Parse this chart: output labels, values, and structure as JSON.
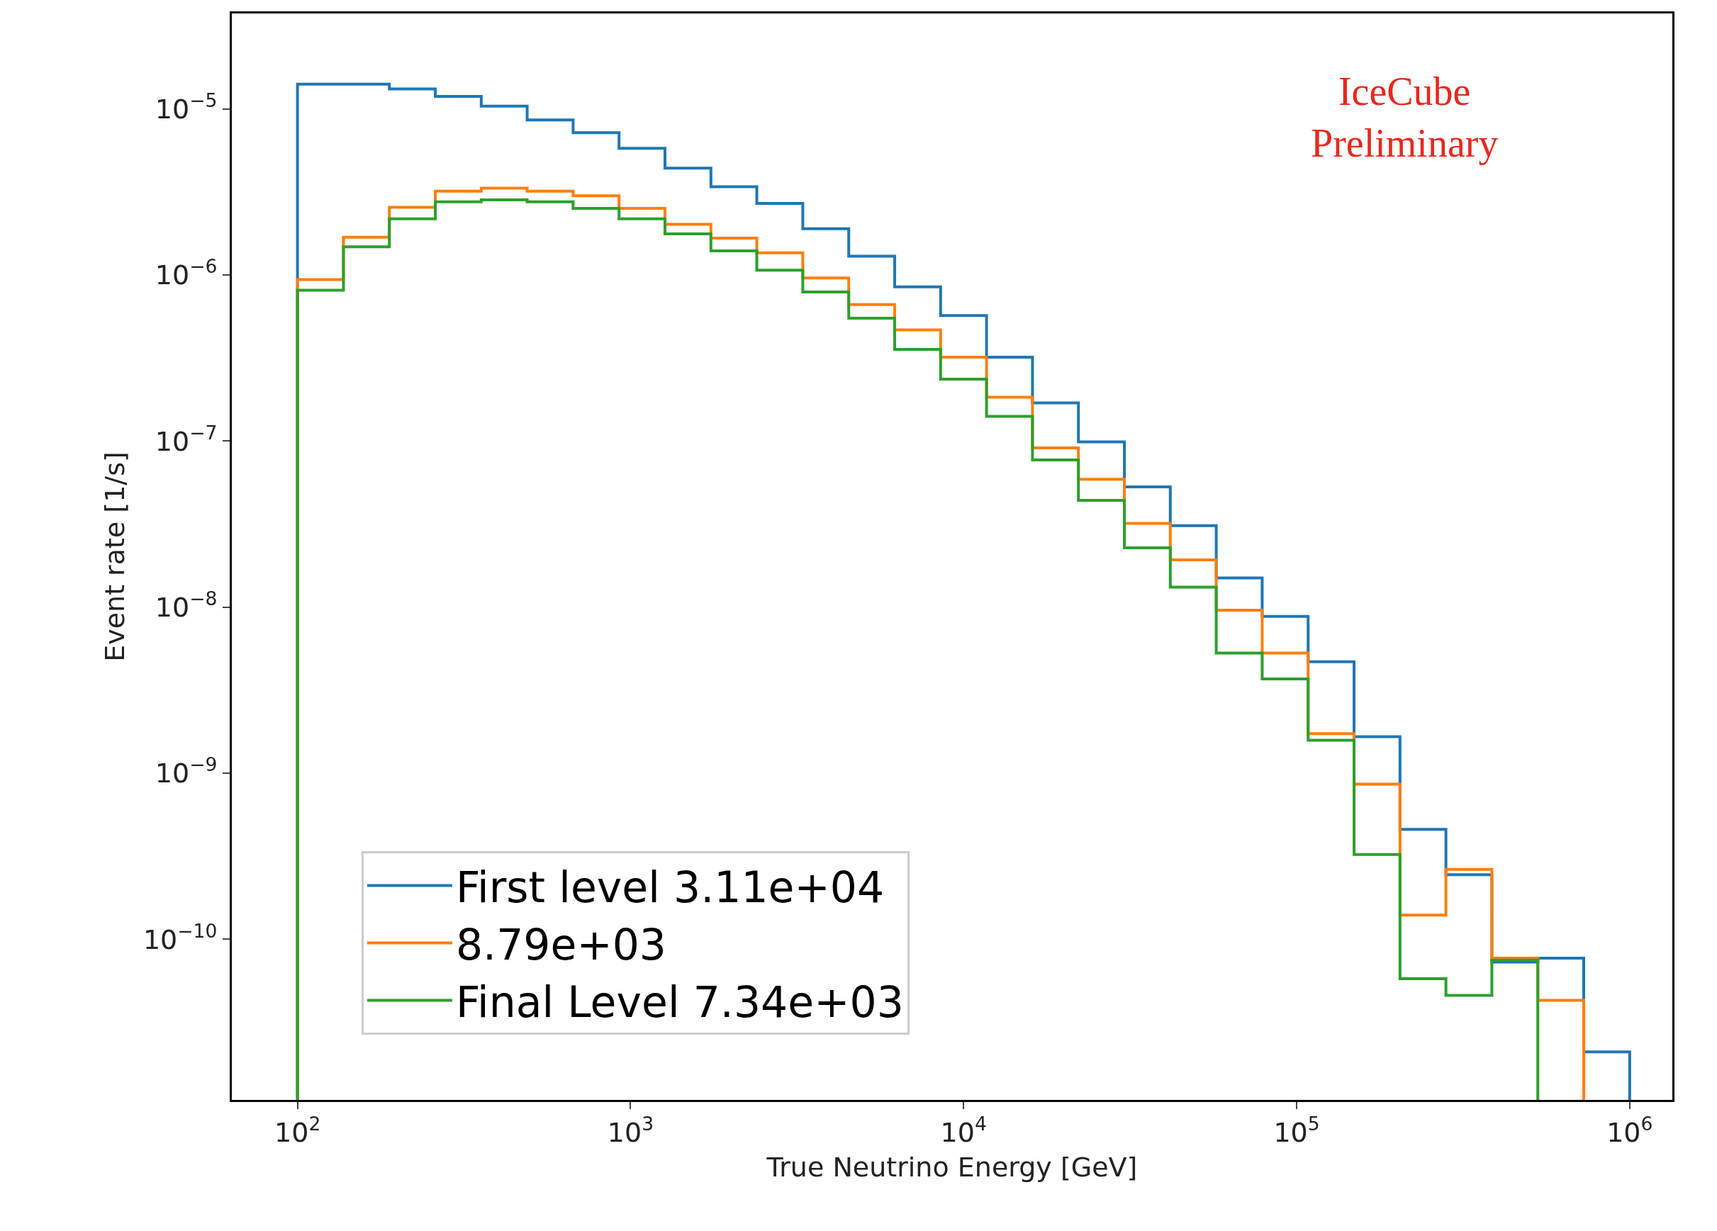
{
  "chart_data": {
    "type": "histogram",
    "xlabel": "True Neutrino Energy [GeV]",
    "ylabel": "Event rate [1/s]",
    "log": "xy",
    "legend": "bottom left",
    "bins": [
      100,
      137.4,
      188.7,
      259.3,
      356.2,
      489.3,
      672.2,
      923.5,
      1268.7,
      1743,
      2394,
      3290,
      4520,
      6210,
      8531,
      11720,
      16100,
      22120,
      30390,
      41750,
      57360,
      78800,
      108270,
      148740,
      204340,
      280720,
      385660,
      529830,
      727890,
      1000000
    ],
    "series": [
      {
        "name": "First level 3.11e+04",
        "color": "#1f77b4",
        "values": [
          1.41e-05,
          1.41e-05,
          1.32e-05,
          1.19e-05,
          1.04e-05,
          8.6e-06,
          7.2e-06,
          5.8e-06,
          4.4e-06,
          3.4e-06,
          2.7e-06,
          1.9e-06,
          1.3e-06,
          8.5e-07,
          5.7e-07,
          3.2e-07,
          1.7e-07,
          9.9e-08,
          5.3e-08,
          3.1e-08,
          1.5e-08,
          8.8e-09,
          4.7e-09,
          1.66e-09,
          4.6e-10,
          2.45e-10,
          7.3e-11,
          7.7e-11,
          2.1e-11
        ]
      },
      {
        "name": "8.79e+03",
        "color": "#ff7f0e",
        "values": [
          9.4e-07,
          1.69e-06,
          2.56e-06,
          3.2e-06,
          3.34e-06,
          3.2e-06,
          3e-06,
          2.52e-06,
          2.02e-06,
          1.67e-06,
          1.36e-06,
          9.6e-07,
          6.65e-07,
          4.67e-07,
          3.2e-07,
          1.84e-07,
          9.1e-08,
          5.9e-08,
          3.2e-08,
          1.93e-08,
          9.6e-09,
          5.3e-09,
          1.73e-09,
          8.6e-10,
          1.4e-10,
          2.64e-10,
          7.7e-11,
          4.3e-11
        ],
        "bins": [
          100,
          137.4,
          188.7,
          259.3,
          356.2,
          489.3,
          672.2,
          923.5,
          1268.7,
          1743,
          2394,
          3290,
          4520,
          6210,
          8531,
          11720,
          16100,
          22120,
          30390,
          41750,
          57360,
          78800,
          108270,
          148740,
          204340,
          280720,
          385660,
          529830,
          727890
        ]
      },
      {
        "name": "Final Level 7.34e+03",
        "color": "#2ca02c",
        "values": [
          8.1e-07,
          1.48e-06,
          2.18e-06,
          2.76e-06,
          2.84e-06,
          2.76e-06,
          2.52e-06,
          2.18e-06,
          1.77e-06,
          1.4e-06,
          1.07e-06,
          7.9e-07,
          5.5e-07,
          3.57e-07,
          2.36e-07,
          1.41e-07,
          7.7e-08,
          4.4e-08,
          2.28e-08,
          1.32e-08,
          5.3e-09,
          3.7e-09,
          1.58e-09,
          3.24e-10,
          5.8e-11,
          4.6e-11,
          7.5e-11
        ],
        "bins": [
          100,
          137.4,
          188.7,
          259.3,
          356.2,
          489.3,
          672.2,
          923.5,
          1268.7,
          1743,
          2394,
          3290,
          4520,
          6210,
          8531,
          11720,
          16100,
          22120,
          30390,
          41750,
          57360,
          78800,
          108270,
          148740,
          204340,
          280720,
          385660,
          529830
        ]
      }
    ],
    "xlim": [
      63.5,
      1343000
    ],
    "ylim": [
      1.08e-11,
      3.76e-05
    ],
    "xticks": [
      {
        "value": 100,
        "label": "10$^{2}$"
      },
      {
        "value": 1000,
        "label": "10$^{3}$"
      },
      {
        "value": 10000,
        "label": "10$^{4}$"
      },
      {
        "value": 100000,
        "label": "10$^{5}$"
      },
      {
        "value": 1000000,
        "label": "10$^{6}$"
      }
    ],
    "yticks": [
      {
        "value": 1e-05,
        "label": "10$^{−5}$"
      },
      {
        "value": 1e-06,
        "label": "10$^{−6}$"
      },
      {
        "value": 1e-07,
        "label": "10$^{−7}$"
      },
      {
        "value": 1e-08,
        "label": "10$^{−8}$"
      },
      {
        "value": 1e-09,
        "label": "10$^{−9}$"
      },
      {
        "value": 1e-10,
        "label": "10$^{−10}$"
      }
    ],
    "annotations": [
      "IceCube\nPreliminary"
    ]
  }
}
